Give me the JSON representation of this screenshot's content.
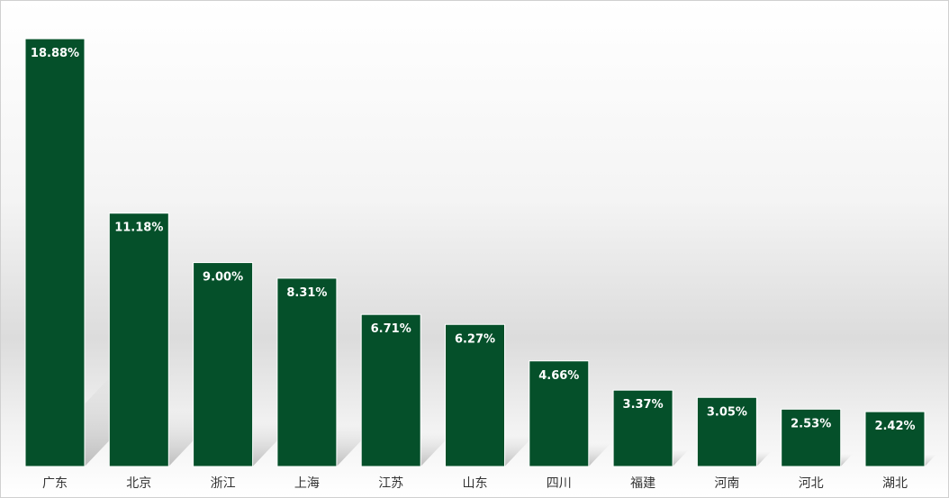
{
  "chart_data": {
    "type": "bar",
    "categories": [
      "广东",
      "北京",
      "浙江",
      "上海",
      "江苏",
      "山东",
      "四川",
      "福建",
      "河南",
      "河北",
      "湖北"
    ],
    "values": [
      18.88,
      11.18,
      9.0,
      8.31,
      6.71,
      6.27,
      4.66,
      3.37,
      3.05,
      2.53,
      2.42
    ],
    "value_labels": [
      "18.88%",
      "11.18%",
      "9.00%",
      "8.31%",
      "6.71%",
      "6.27%",
      "4.66%",
      "3.37%",
      "3.05%",
      "2.53%",
      "2.42%"
    ],
    "title": "",
    "xlabel": "",
    "ylabel": "",
    "ylim": [
      0,
      19.5
    ],
    "grid": false,
    "legend": "none",
    "bar_color": "#05502a",
    "label_color": "#ffffff"
  }
}
